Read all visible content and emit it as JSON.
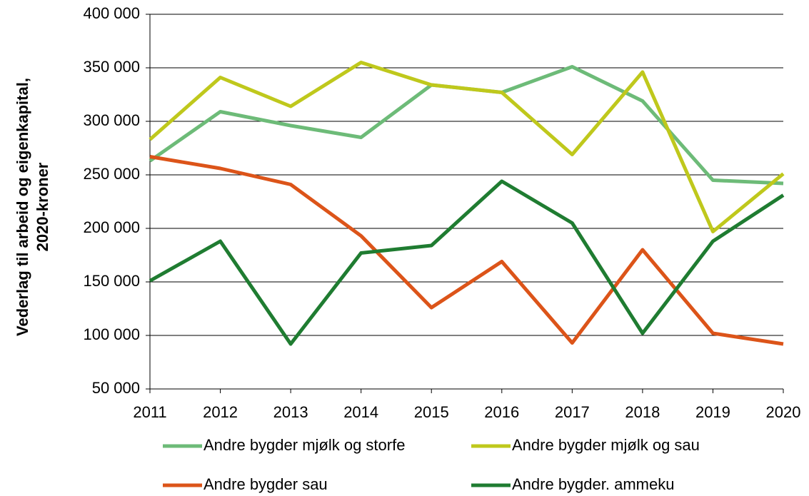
{
  "chart_data": {
    "type": "line",
    "ylabel": [
      "Vederlag til arbeid og eigenkapital,",
      "2020-kroner"
    ],
    "x": [
      2011,
      2012,
      2013,
      2014,
      2015,
      2016,
      2017,
      2018,
      2019,
      2020
    ],
    "xlim": [
      2011,
      2020
    ],
    "xticks": [
      2011,
      2012,
      2013,
      2014,
      2015,
      2016,
      2017,
      2018,
      2019,
      2020
    ],
    "ylim": [
      50000,
      400000
    ],
    "yticks": [
      {
        "value": 50000,
        "label": "50 000"
      },
      {
        "value": 100000,
        "label": "100 000"
      },
      {
        "value": 150000,
        "label": "150 000"
      },
      {
        "value": 200000,
        "label": "200 000"
      },
      {
        "value": 250000,
        "label": "250 000"
      },
      {
        "value": 300000,
        "label": "300 000"
      },
      {
        "value": 350000,
        "label": "350 000"
      },
      {
        "value": 400000,
        "label": "400 000"
      }
    ],
    "grid": true,
    "series": [
      {
        "name": "Andre bygder mjølk og storfe",
        "color": "#6dbb78",
        "values": [
          263000,
          309000,
          296000,
          285000,
          334000,
          327000,
          351000,
          319000,
          245000,
          242000
        ]
      },
      {
        "name": "Andre bygder mjølk og sau",
        "color": "#bfc81c",
        "values": [
          283000,
          341000,
          314000,
          355000,
          334000,
          327000,
          269000,
          346000,
          197000,
          251000
        ]
      },
      {
        "name": "Andre bygder sau",
        "color": "#dc5419",
        "values": [
          267000,
          256000,
          241000,
          193000,
          126000,
          169000,
          93000,
          180000,
          102000,
          92000
        ]
      },
      {
        "name": "Andre bygder. ammeku",
        "color": "#1f7c31",
        "values": [
          151000,
          188000,
          92000,
          177000,
          184000,
          244000,
          205000,
          102000,
          188000,
          231000
        ]
      }
    ]
  }
}
